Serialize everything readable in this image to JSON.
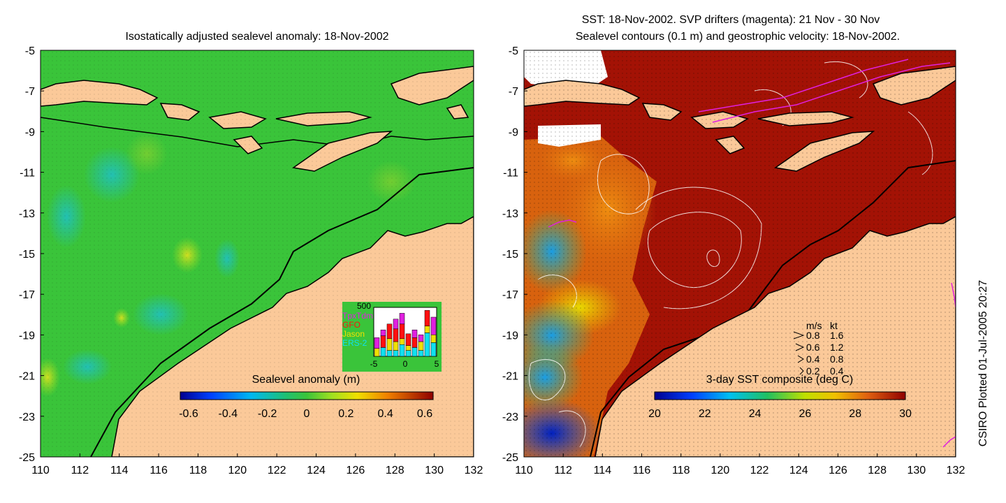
{
  "colors": {
    "land": "#fbc999",
    "ocean_green": "#3ac43a",
    "sst_red": "#a31205",
    "sst_orange": "#d8620e",
    "drifter": "#e020e0",
    "contour": "#ffffff"
  },
  "left_panel": {
    "title": "Isostatically adjusted sealevel anomaly: 18-Nov-2002",
    "colorbar": {
      "title": "Sealevel anomaly (m)",
      "ticks": [
        "-0.6",
        "-0.4",
        "-0.2",
        "0",
        "0.2",
        "0.4",
        "0.6"
      ],
      "range": [
        -0.6,
        0.6
      ]
    },
    "inset": {
      "ymax_label": "500",
      "x_ticks": [
        "-5",
        "0",
        "5"
      ],
      "legend": [
        {
          "label": "TpxTdm",
          "color": "#e020e0"
        },
        {
          "label": "GFO",
          "color": "#ff1010"
        },
        {
          "label": "Jason",
          "color": "#f0e000"
        },
        {
          "label": "ERS-2",
          "color": "#10e0f0"
        }
      ],
      "bars": [
        {
          "day": -5,
          "counts": [
            110,
            0,
            80,
            0
          ]
        },
        {
          "day": -4,
          "counts": [
            60,
            120,
            0,
            90
          ]
        },
        {
          "day": -3,
          "counts": [
            0,
            150,
            120,
            60
          ]
        },
        {
          "day": -2,
          "counts": [
            100,
            130,
            90,
            60
          ]
        },
        {
          "day": -1,
          "counts": [
            110,
            150,
            60,
            120
          ]
        },
        {
          "day": 0,
          "counts": [
            0,
            120,
            50,
            60
          ]
        },
        {
          "day": 1,
          "counts": [
            80,
            100,
            0,
            90
          ]
        },
        {
          "day": 2,
          "counts": [
            70,
            0,
            90,
            60
          ]
        },
        {
          "day": 3,
          "counts": [
            0,
            160,
            70,
            240
          ]
        },
        {
          "day": 4,
          "counts": [
            180,
            0,
            80,
            140
          ]
        }
      ]
    }
  },
  "right_panel": {
    "title_line1": "SST: 18-Nov-2002. SVP drifters (magenta): 21 Nov - 30 Nov",
    "title_line2": "Sealevel contours (0.1 m) and geostrophic velocity: 18-Nov-2002.",
    "colorbar": {
      "title": "3-day SST composite (deg C)",
      "ticks": [
        "20",
        "22",
        "24",
        "26",
        "28",
        "30"
      ],
      "range": [
        20,
        30
      ]
    },
    "speed_legend": {
      "header_ms": "m/s",
      "header_kt": "kt",
      "rows": [
        {
          "ms": "0.8",
          "kt": "1.6"
        },
        {
          "ms": "0.6",
          "kt": "1.2"
        },
        {
          "ms": "0.4",
          "kt": "0.8"
        },
        {
          "ms": "0.2",
          "kt": "0.4"
        }
      ]
    }
  },
  "axes": {
    "x_ticks": [
      "110",
      "112",
      "114",
      "116",
      "118",
      "120",
      "122",
      "124",
      "126",
      "128",
      "130",
      "132"
    ],
    "y_ticks": [
      "-5",
      "-7",
      "-9",
      "-11",
      "-13",
      "-15",
      "-17",
      "-19",
      "-21",
      "-23",
      "-25"
    ],
    "lon_range": [
      110,
      132
    ],
    "lat_range": [
      -5,
      -25
    ]
  },
  "credit": "CSIRO Plotted 01-Jul-2005 20:27"
}
